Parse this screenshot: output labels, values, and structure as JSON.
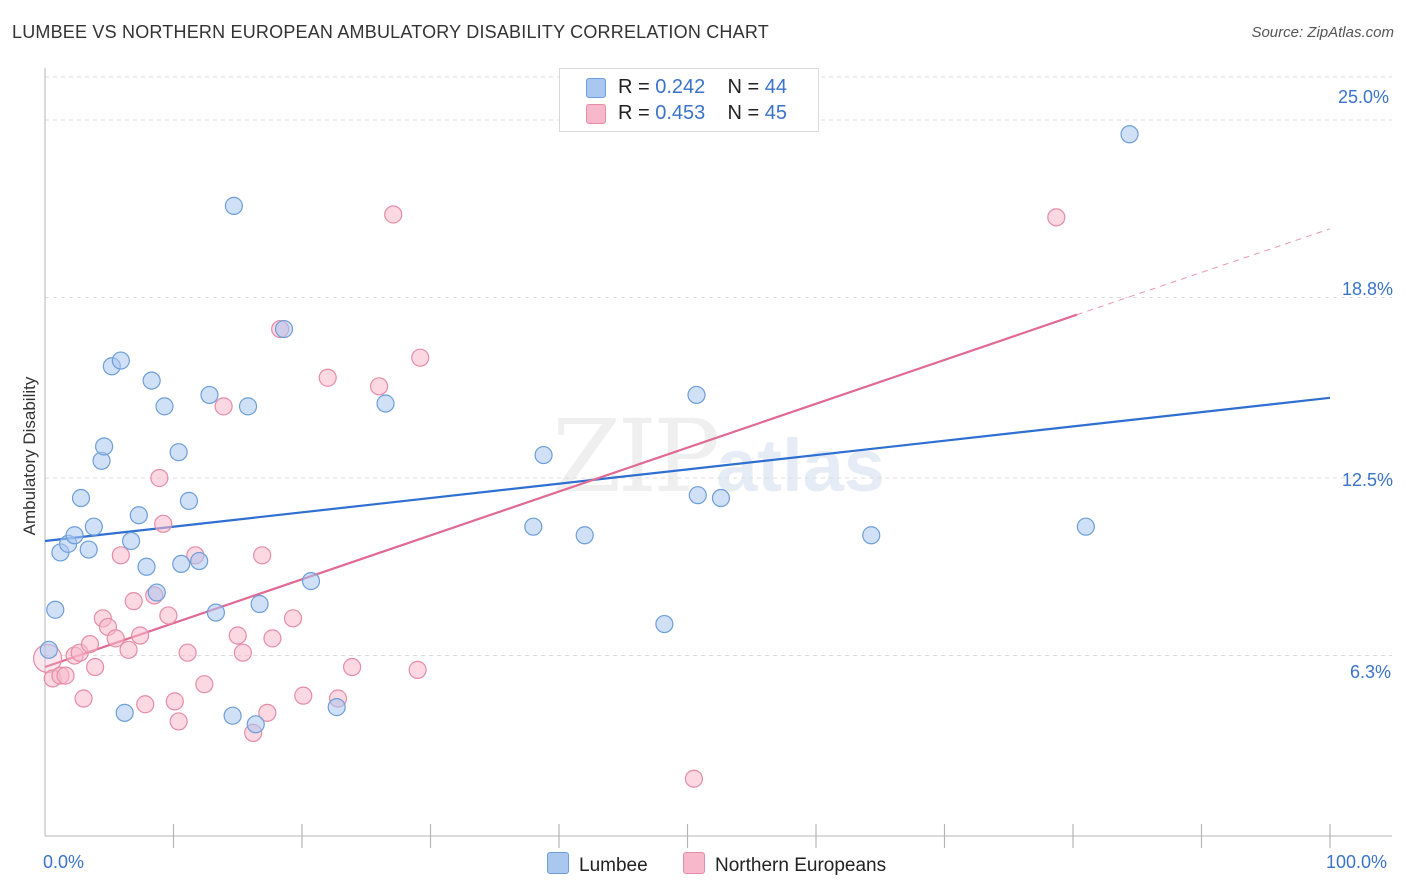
{
  "title": "LUMBEE VS NORTHERN EUROPEAN AMBULATORY DISABILITY CORRELATION CHART",
  "source": "Source: ZipAtlas.com",
  "watermark": {
    "zip": "ZIP",
    "atlas": "atlas"
  },
  "legend": {
    "rows": [
      {
        "r_label": "R =",
        "r_value": "0.242",
        "n_label": "N =",
        "n_value": "44",
        "color": "#aac7f0"
      },
      {
        "r_label": "R =",
        "r_value": "0.453",
        "n_label": "N =",
        "n_value": "45",
        "color": "#f7b8cb"
      }
    ]
  },
  "bottom_legend": [
    {
      "label": "Lumbee",
      "color": "#aac7f0"
    },
    {
      "label": "Northern Europeans",
      "color": "#f7b8cb"
    }
  ],
  "chart_data": {
    "type": "scatter",
    "title": "LUMBEE VS NORTHERN EUROPEAN AMBULATORY DISABILITY CORRELATION CHART",
    "xlabel": "",
    "ylabel": "Ambulatory Disability",
    "xlim": [
      0,
      100
    ],
    "ylim": [
      0,
      26.5
    ],
    "x_tick_labels": [
      "0.0%",
      "100.0%"
    ],
    "y_ticks": [
      {
        "value": 25.0,
        "label": "25.0%"
      },
      {
        "value": 18.8,
        "label": "18.8%"
      },
      {
        "value": 12.5,
        "label": "12.5%"
      },
      {
        "value": 6.3,
        "label": "6.3%"
      }
    ],
    "series": [
      {
        "name": "Lumbee",
        "color": "#aac7f0",
        "stroke": "#6d9ed9",
        "line_color": "#2f6fd1",
        "trend": {
          "x0": 0,
          "y0": 10.3,
          "x1": 100,
          "y1": 15.3
        },
        "points": [
          [
            0.3,
            6.5
          ],
          [
            0.8,
            7.9
          ],
          [
            1.2,
            9.9
          ],
          [
            1.8,
            10.2
          ],
          [
            2.3,
            10.5
          ],
          [
            2.8,
            11.8
          ],
          [
            3.4,
            10.0
          ],
          [
            3.8,
            10.8
          ],
          [
            4.4,
            13.1
          ],
          [
            4.6,
            13.6
          ],
          [
            5.2,
            16.4
          ],
          [
            5.9,
            16.6
          ],
          [
            6.2,
            4.3
          ],
          [
            6.7,
            10.3
          ],
          [
            7.3,
            11.2
          ],
          [
            7.9,
            9.4
          ],
          [
            8.3,
            15.9
          ],
          [
            8.7,
            8.5
          ],
          [
            9.3,
            15.0
          ],
          [
            10.4,
            13.4
          ],
          [
            10.6,
            9.5
          ],
          [
            11.2,
            11.7
          ],
          [
            12.0,
            9.6
          ],
          [
            12.8,
            15.4
          ],
          [
            13.3,
            7.8
          ],
          [
            14.6,
            4.2
          ],
          [
            14.7,
            22.0
          ],
          [
            15.8,
            15.0
          ],
          [
            16.4,
            3.9
          ],
          [
            16.7,
            8.1
          ],
          [
            18.6,
            17.7
          ],
          [
            20.7,
            8.9
          ],
          [
            22.7,
            4.5
          ],
          [
            26.5,
            15.1
          ],
          [
            38.0,
            10.8
          ],
          [
            38.8,
            13.3
          ],
          [
            42.0,
            10.5
          ],
          [
            48.2,
            7.4
          ],
          [
            50.7,
            15.4
          ],
          [
            50.8,
            11.9
          ],
          [
            52.6,
            11.8
          ],
          [
            64.3,
            10.5
          ],
          [
            81.0,
            10.8
          ],
          [
            84.4,
            24.5
          ]
        ]
      },
      {
        "name": "Northern Europeans",
        "color": "#f7b8cb",
        "stroke": "#e58ca8",
        "line_color": "#e06a94",
        "trend": {
          "x0": 0,
          "y0": 5.9,
          "x1": 80.3,
          "y1": 18.2,
          "dash_x1": 100,
          "dash_y1": 21.2
        },
        "points": [
          [
            0.2,
            6.2
          ],
          [
            0.6,
            5.5
          ],
          [
            1.2,
            5.6
          ],
          [
            1.6,
            5.6
          ],
          [
            2.3,
            6.3
          ],
          [
            2.7,
            6.4
          ],
          [
            3.0,
            4.8
          ],
          [
            3.5,
            6.7
          ],
          [
            3.9,
            5.9
          ],
          [
            4.5,
            7.6
          ],
          [
            4.9,
            7.3
          ],
          [
            5.5,
            6.9
          ],
          [
            5.9,
            9.8
          ],
          [
            6.5,
            6.5
          ],
          [
            6.9,
            8.2
          ],
          [
            7.4,
            7.0
          ],
          [
            7.8,
            4.6
          ],
          [
            8.5,
            8.4
          ],
          [
            8.9,
            12.5
          ],
          [
            9.2,
            10.9
          ],
          [
            9.6,
            7.7
          ],
          [
            10.1,
            4.7
          ],
          [
            10.4,
            4.0
          ],
          [
            11.1,
            6.4
          ],
          [
            11.7,
            9.8
          ],
          [
            12.4,
            5.3
          ],
          [
            13.9,
            15.0
          ],
          [
            15.0,
            7.0
          ],
          [
            15.4,
            6.4
          ],
          [
            16.2,
            3.6
          ],
          [
            16.9,
            9.8
          ],
          [
            17.3,
            4.3
          ],
          [
            17.7,
            6.9
          ],
          [
            18.3,
            17.7
          ],
          [
            19.3,
            7.6
          ],
          [
            20.1,
            4.9
          ],
          [
            22.0,
            16.0
          ],
          [
            22.8,
            4.8
          ],
          [
            23.9,
            5.9
          ],
          [
            26.0,
            15.7
          ],
          [
            27.1,
            21.7
          ],
          [
            29.0,
            5.8
          ],
          [
            29.2,
            16.7
          ],
          [
            50.5,
            2.0
          ],
          [
            78.7,
            21.6
          ]
        ]
      }
    ]
  }
}
